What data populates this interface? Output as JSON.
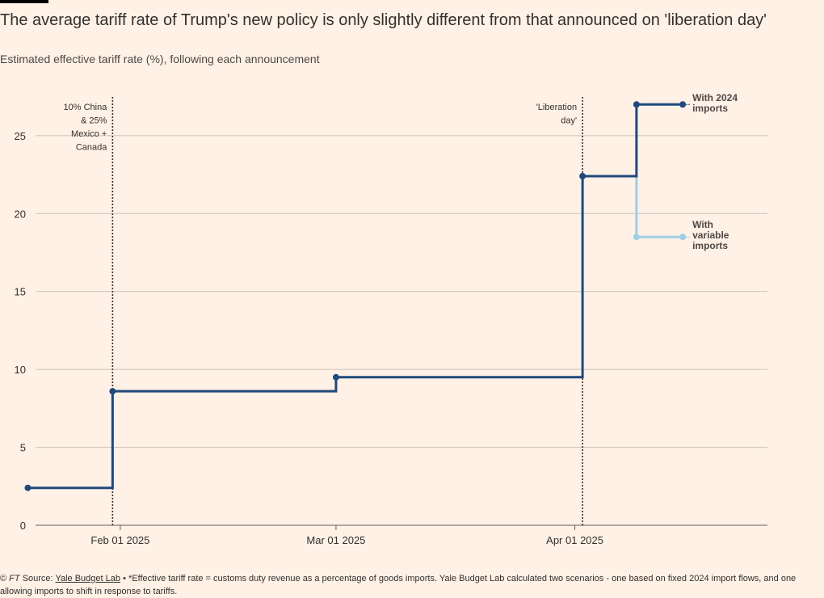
{
  "header": {
    "title": "The average tariff rate of Trump's new policy is only slightly different from that announced on 'liberation day'",
    "subtitle": "Estimated effective tariff rate (%), following each announcement"
  },
  "footer": {
    "copyright": "©",
    "brand": "FT",
    "source_label": "Source:",
    "source_link": "Yale Budget Lab",
    "note": "• *Effective tariff rate = customs duty revenue as a percentage of goods imports. Yale Budget Lab calculated two scenarios - one based on fixed 2024 import flows, and one allowing imports to shift in response to tariffs."
  },
  "colors": {
    "background": "#fff1e5",
    "series_2024": "#204a7d",
    "series_variable": "#9ecfe3",
    "grid": "#ccc1b7",
    "axis": "#66605c",
    "text": "#33302e"
  },
  "chart_data": {
    "type": "line",
    "step": true,
    "title": "The average tariff rate of Trump's new policy is only slightly different from that announced on 'liberation day'",
    "subtitle": "Estimated effective tariff rate (%), following each announcement",
    "xlabel": "",
    "ylabel": "",
    "ylim": [
      0,
      28
    ],
    "xlim": [
      "2025-01-21",
      "2025-04-26"
    ],
    "yticks": [
      0,
      5,
      10,
      15,
      20,
      25
    ],
    "xticks": [
      {
        "date": "2025-02-01",
        "label": "Feb 01 2025"
      },
      {
        "date": "2025-03-01",
        "label": "Mar 01 2025"
      },
      {
        "date": "2025-04-01",
        "label": "Apr 01 2025"
      }
    ],
    "grid": true,
    "series": [
      {
        "name": "With 2024 imports",
        "label_lines": [
          "With 2024",
          "imports"
        ],
        "color": "#204a7d",
        "points": [
          {
            "x": "2025-01-20",
            "y": 2.4
          },
          {
            "x": "2025-01-31",
            "y": 8.6
          },
          {
            "x": "2025-03-01",
            "y": 9.5
          },
          {
            "x": "2025-04-02",
            "y": 22.4
          },
          {
            "x": "2025-04-09",
            "y": 27.0
          },
          {
            "x": "2025-04-15",
            "y": 27.0
          }
        ]
      },
      {
        "name": "With variable imports",
        "label_lines": [
          "With",
          "variable",
          "imports"
        ],
        "color": "#9ecfe3",
        "points": [
          {
            "x": "2025-04-02",
            "y": 22.4
          },
          {
            "x": "2025-04-09",
            "y": 18.5
          },
          {
            "x": "2025-04-15",
            "y": 18.5
          }
        ]
      }
    ],
    "annotations": [
      {
        "x": "2025-01-31",
        "lines": [
          "10% China",
          "& 25%",
          "Mexico +",
          "Canada"
        ]
      },
      {
        "x": "2025-04-02",
        "lines": [
          "'Liberation",
          "day'"
        ]
      }
    ]
  }
}
